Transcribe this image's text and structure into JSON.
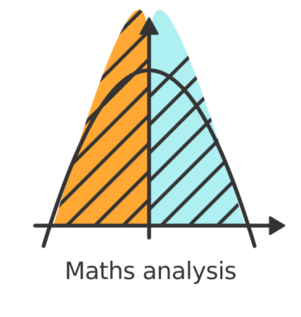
{
  "caption": "Maths analysis",
  "icon": "parabola-area-under-curve-icon",
  "colors": {
    "left_fill": "#FFA834",
    "right_fill": "#AEEFF2",
    "stroke": "#333333"
  }
}
